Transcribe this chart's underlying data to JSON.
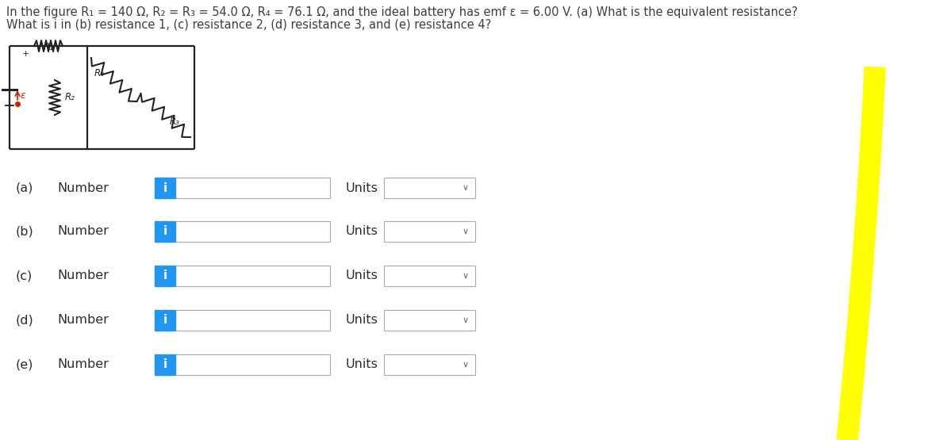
{
  "bg_color": "#ffffff",
  "header_text_line1": "In the figure R₁ = 140 Ω, R₂ = R₃ = 54.0 Ω, R₄ = 76.1 Ω, and the ideal battery has emf ε = 6.00 V. (a) What is the equivalent resistance?",
  "header_text_line2": "What is i in (b) resistance 1, (c) resistance 2, (d) resistance 3, and (e) resistance 4?",
  "header_color": "#3d3d3d",
  "header_fontsize": 10.5,
  "row_label_color": "#2d2d2d",
  "row_text_color": "#2d2d2d",
  "i_button_color": "#2196f3",
  "i_button_text": "i",
  "i_button_text_color": "#ffffff",
  "units_label": "Units",
  "units_label_color": "#2d2d2d",
  "input_box_border": "#aaaaaa",
  "units_box_border": "#aaaaaa",
  "dropdown_arrow": "∨",
  "yellow_curve_color": "#ffff00"
}
